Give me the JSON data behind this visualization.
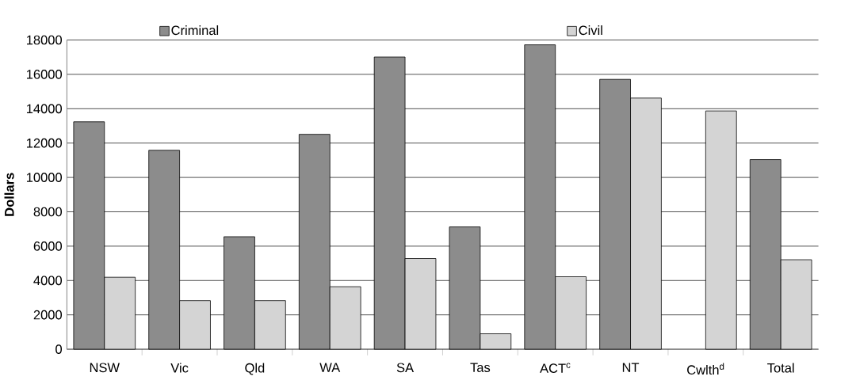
{
  "chart_data": {
    "type": "bar",
    "ylabel": "**Dollars**",
    "categories": [
      "NSW",
      "Vic",
      "Qld",
      "WA",
      "SA",
      "Tas",
      "ACT$^{c}$",
      "NT",
      "Cwlth$^{d}$",
      "Total"
    ],
    "series": [
      {
        "name": "Criminal",
        "color": "#8c8c8c",
        "values": [
          13240,
          11580,
          6550,
          12510,
          17010,
          7120,
          17720,
          15710,
          null,
          11040
        ]
      },
      {
        "name": "Civil",
        "color": "#d4d4d4",
        "values": [
          4190,
          2830,
          2830,
          3640,
          5280,
          900,
          4220,
          14620,
          13870,
          5210
        ]
      }
    ],
    "ylim": [
      0,
      18000
    ],
    "yticks": [
      0,
      2000,
      4000,
      6000,
      8000,
      10000,
      12000,
      14000,
      16000,
      18000
    ],
    "grid": "y",
    "legend": "top"
  }
}
